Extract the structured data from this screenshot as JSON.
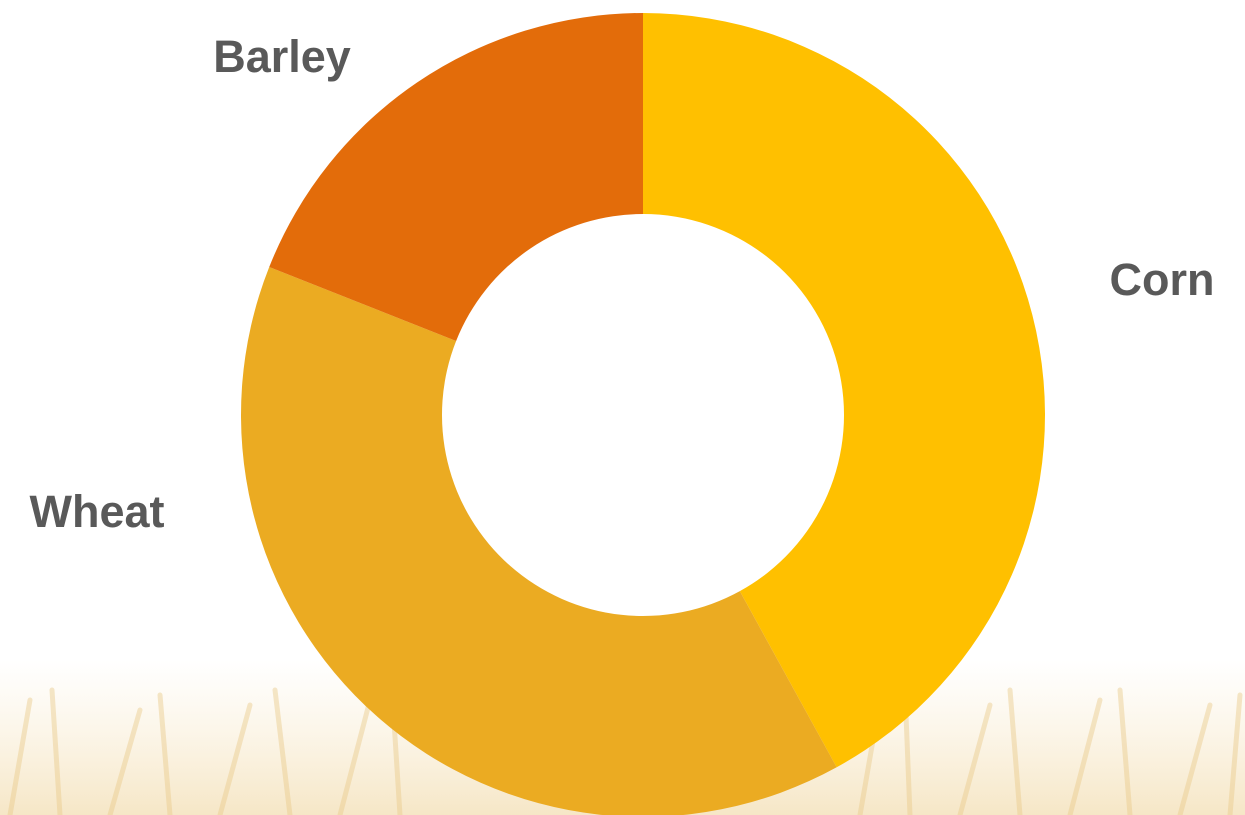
{
  "chart_data": {
    "type": "donut",
    "categories": [
      "Corn",
      "Wheat",
      "Barley"
    ],
    "values": [
      42,
      39,
      19
    ],
    "colors": [
      "#FFC000",
      "#EBAB22",
      "#E36C0A"
    ]
  }
}
